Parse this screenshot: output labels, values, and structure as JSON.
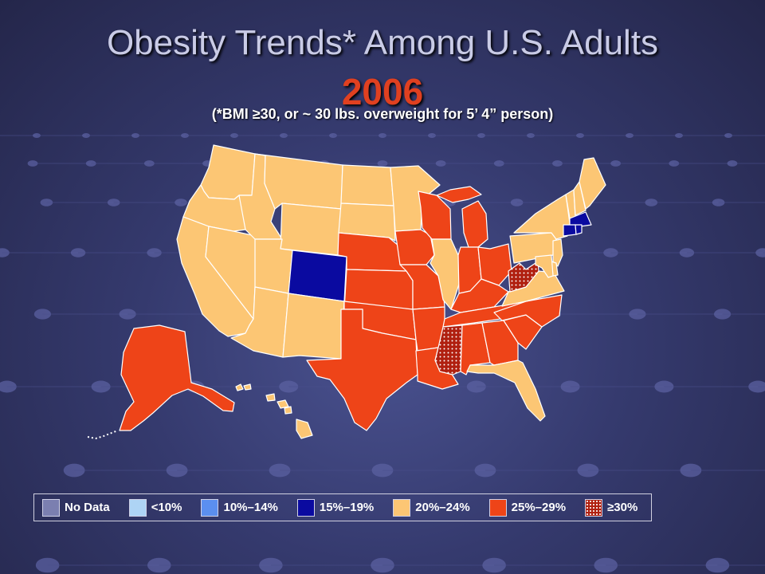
{
  "title": "Obesity Trends* Among U.S. Adults",
  "year": "2006",
  "subtitle": "(*BMI ≥30, or ~ 30 lbs. overweight for 5’ 4” person)",
  "colors": {
    "no_data": "#7b7fb0",
    "lt10": "#aed4f5",
    "r10_14": "#5b8ff0",
    "r15_19": "#0a0aa0",
    "r20_24": "#fcc674",
    "r25_29": "#ee4418",
    "gte30": "#b02010",
    "border": "#ffffff"
  },
  "legend": [
    {
      "key": "no_data",
      "label": "No Data"
    },
    {
      "key": "lt10",
      "label": "<10%"
    },
    {
      "key": "r10_14",
      "label": "10%–14%"
    },
    {
      "key": "r15_19",
      "label": "15%–19%"
    },
    {
      "key": "r20_24",
      "label": "20%–24%"
    },
    {
      "key": "r25_29",
      "label": "25%–29%"
    },
    {
      "key": "gte30",
      "label": "≥30%"
    }
  ],
  "states": {
    "WA": "r20_24",
    "OR": "r20_24",
    "CA": "r20_24",
    "NV": "r20_24",
    "ID": "r20_24",
    "MT": "r20_24",
    "WY": "r20_24",
    "UT": "r20_24",
    "AZ": "r20_24",
    "NM": "r20_24",
    "CO": "r15_19",
    "ND": "r20_24",
    "SD": "r20_24",
    "NE": "r25_29",
    "KS": "r25_29",
    "OK": "r25_29",
    "TX": "r25_29",
    "MN": "r20_24",
    "IA": "r25_29",
    "MO": "r25_29",
    "AR": "r25_29",
    "LA": "r25_29",
    "WI": "r25_29",
    "IL": "r20_24",
    "MI": "r25_29",
    "IN": "r25_29",
    "OH": "r25_29",
    "KY": "r25_29",
    "TN": "r25_29",
    "MS": "gte30",
    "AL": "r25_29",
    "GA": "r25_29",
    "FL": "r20_24",
    "SC": "r25_29",
    "NC": "r25_29",
    "VA": "r20_24",
    "WV": "gte30",
    "PA": "r20_24",
    "NY": "r20_24",
    "VT": "r20_24",
    "NH": "r20_24",
    "ME": "r20_24",
    "MA": "r15_19",
    "CT": "r15_19",
    "RI": "r15_19",
    "NJ": "r20_24",
    "DE": "r20_24",
    "MD": "r20_24",
    "AK": "r25_29",
    "HI": "r20_24"
  }
}
